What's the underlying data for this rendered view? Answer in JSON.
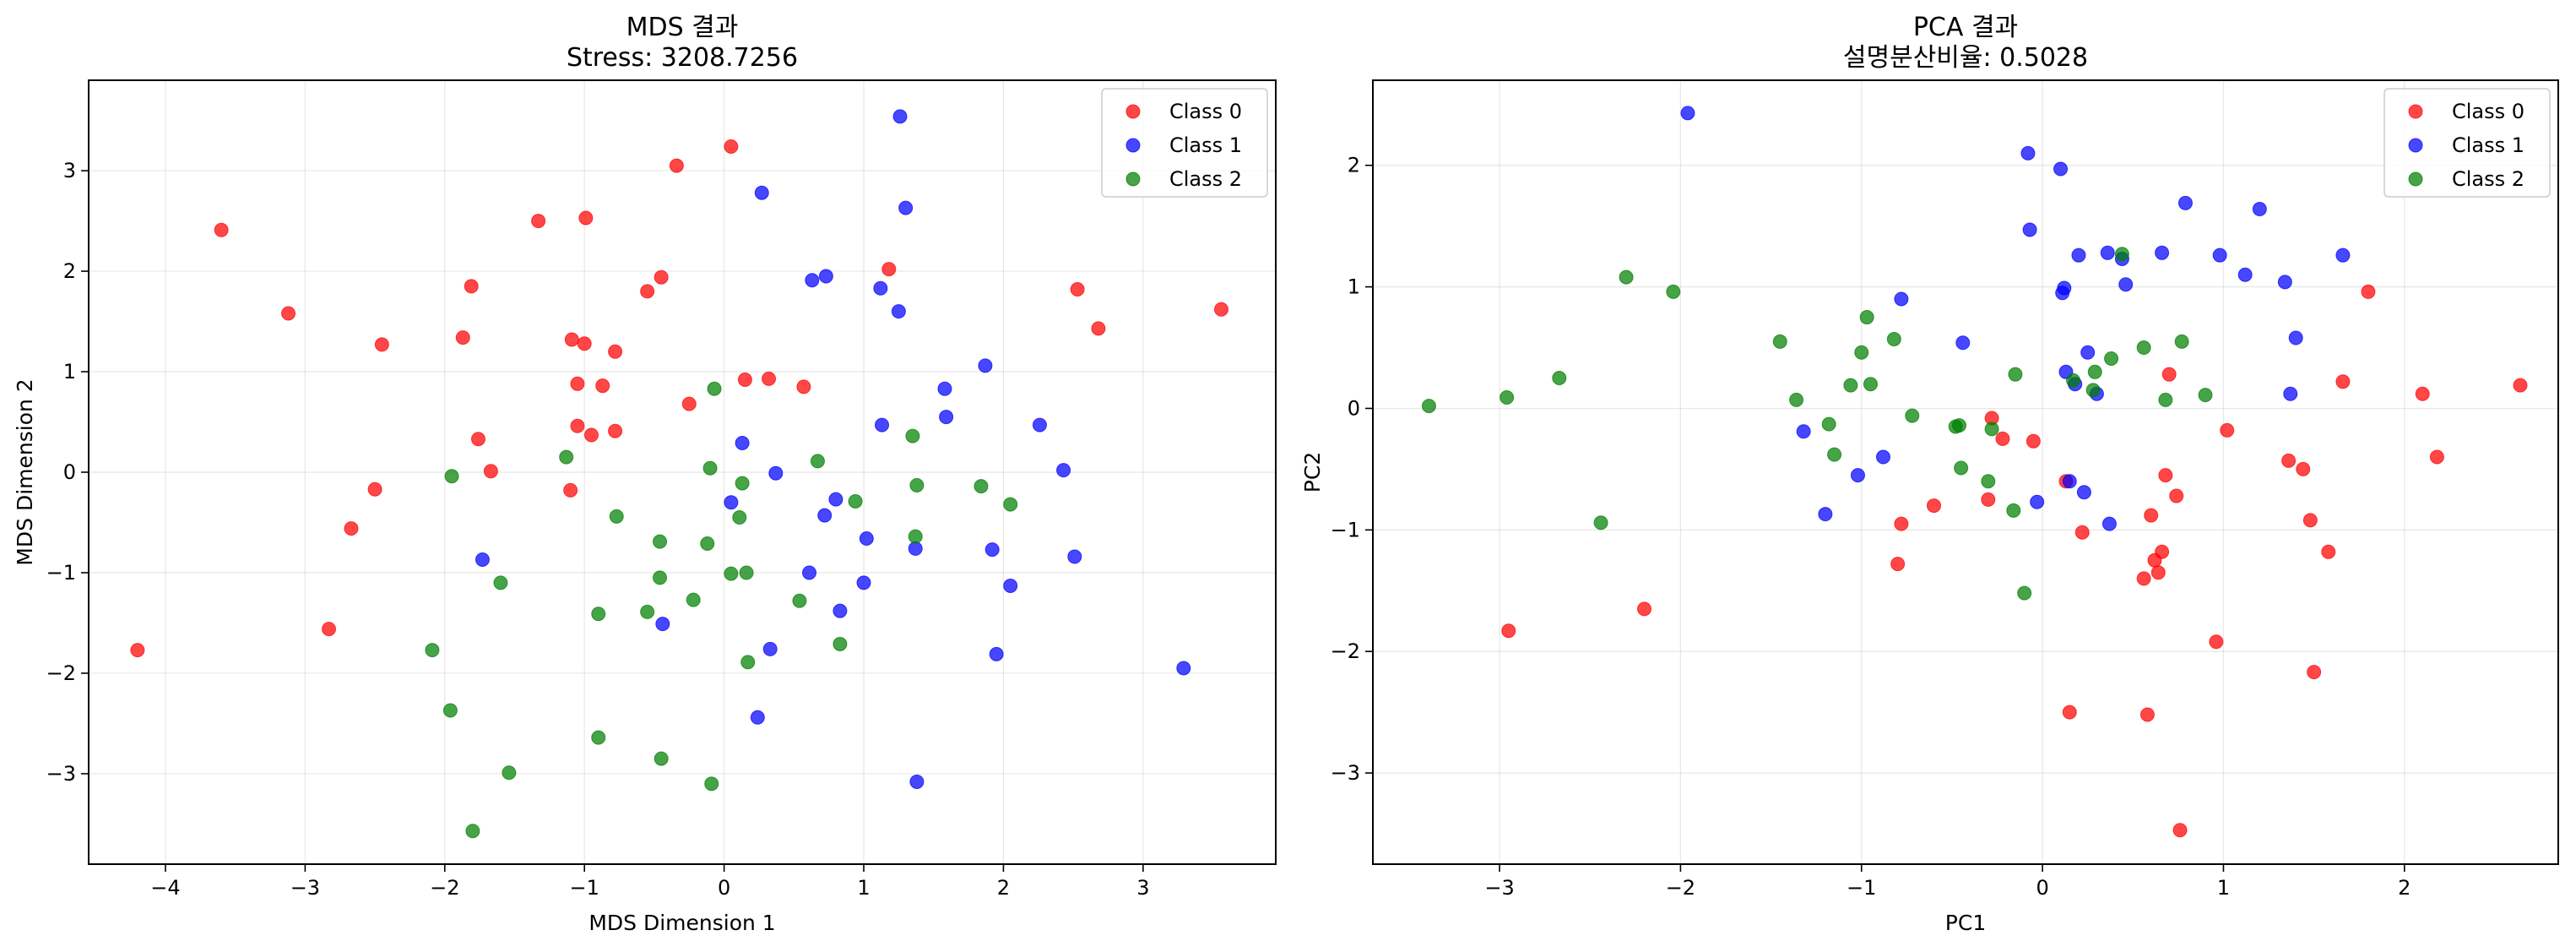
{
  "colors": {
    "Class 0": "#ff0000",
    "Class 1": "#0000ff",
    "Class 2": "#008000"
  },
  "chart_data": [
    {
      "type": "scatter",
      "title": "MDS 결과",
      "subtitle": "Stress: 3208.7256",
      "xlabel": "MDS Dimension 1",
      "ylabel": "MDS Dimension 2",
      "xlim": [
        -4.55,
        3.95
      ],
      "ylim": [
        -3.9,
        3.9
      ],
      "xticks": [
        -4,
        -3,
        -2,
        -1,
        0,
        1,
        2,
        3
      ],
      "yticks": [
        -3,
        -2,
        -1,
        0,
        1,
        2,
        3
      ],
      "grid": true,
      "legend": "top-right",
      "series": [
        {
          "name": "Class 0",
          "points": [
            [
              -4.2,
              -1.77
            ],
            [
              -3.6,
              2.41
            ],
            [
              -3.12,
              1.58
            ],
            [
              -2.83,
              -1.56
            ],
            [
              -2.67,
              -0.56
            ],
            [
              -2.5,
              -0.17
            ],
            [
              -2.45,
              1.27
            ],
            [
              -1.87,
              1.34
            ],
            [
              -1.81,
              1.85
            ],
            [
              -1.76,
              0.33
            ],
            [
              -1.67,
              0.01
            ],
            [
              -1.33,
              2.5
            ],
            [
              -1.1,
              -0.18
            ],
            [
              -1.09,
              1.32
            ],
            [
              -1.05,
              0.88
            ],
            [
              -1.05,
              0.46
            ],
            [
              -1.0,
              1.28
            ],
            [
              -0.99,
              2.53
            ],
            [
              -0.95,
              0.37
            ],
            [
              -0.87,
              0.86
            ],
            [
              -0.78,
              0.41
            ],
            [
              -0.78,
              1.2
            ],
            [
              -0.55,
              1.8
            ],
            [
              -0.45,
              1.94
            ],
            [
              -0.34,
              3.05
            ],
            [
              -0.25,
              0.68
            ],
            [
              0.05,
              3.24
            ],
            [
              0.15,
              0.92
            ],
            [
              0.32,
              0.93
            ],
            [
              0.57,
              0.85
            ],
            [
              1.18,
              2.02
            ],
            [
              2.53,
              1.82
            ],
            [
              2.68,
              1.43
            ],
            [
              3.56,
              1.62
            ]
          ]
        },
        {
          "name": "Class 1",
          "points": [
            [
              -1.73,
              -0.87
            ],
            [
              -0.44,
              -1.51
            ],
            [
              0.05,
              -0.3
            ],
            [
              0.13,
              0.29
            ],
            [
              0.24,
              -2.44
            ],
            [
              0.27,
              2.78
            ],
            [
              0.33,
              -1.76
            ],
            [
              0.37,
              -0.01
            ],
            [
              0.61,
              -1.0
            ],
            [
              0.63,
              1.91
            ],
            [
              0.72,
              -0.43
            ],
            [
              0.73,
              1.95
            ],
            [
              0.8,
              -0.27
            ],
            [
              0.83,
              -1.38
            ],
            [
              1.0,
              -1.1
            ],
            [
              1.02,
              -0.66
            ],
            [
              1.12,
              1.83
            ],
            [
              1.13,
              0.47
            ],
            [
              1.25,
              1.6
            ],
            [
              1.26,
              3.54
            ],
            [
              1.3,
              2.63
            ],
            [
              1.37,
              -0.76
            ],
            [
              1.38,
              -3.08
            ],
            [
              1.58,
              0.83
            ],
            [
              1.59,
              0.55
            ],
            [
              1.87,
              1.06
            ],
            [
              1.92,
              -0.77
            ],
            [
              1.95,
              -1.81
            ],
            [
              2.05,
              -1.13
            ],
            [
              2.26,
              0.47
            ],
            [
              2.43,
              0.02
            ],
            [
              2.51,
              -0.84
            ],
            [
              3.29,
              -1.95
            ]
          ]
        },
        {
          "name": "Class 2",
          "points": [
            [
              -2.09,
              -1.77
            ],
            [
              -1.96,
              -2.37
            ],
            [
              -1.95,
              -0.04
            ],
            [
              -1.8,
              -3.57
            ],
            [
              -1.6,
              -1.1
            ],
            [
              -1.54,
              -2.99
            ],
            [
              -1.13,
              0.15
            ],
            [
              -0.9,
              -1.41
            ],
            [
              -0.9,
              -2.64
            ],
            [
              -0.77,
              -0.44
            ],
            [
              -0.55,
              -1.39
            ],
            [
              -0.46,
              -0.69
            ],
            [
              -0.46,
              -1.05
            ],
            [
              -0.45,
              -2.85
            ],
            [
              -0.22,
              -1.27
            ],
            [
              -0.12,
              -0.71
            ],
            [
              -0.1,
              0.04
            ],
            [
              -0.09,
              -3.1
            ],
            [
              -0.07,
              0.83
            ],
            [
              0.05,
              -1.01
            ],
            [
              0.11,
              -0.45
            ],
            [
              0.13,
              -0.11
            ],
            [
              0.16,
              -1.0
            ],
            [
              0.17,
              -1.89
            ],
            [
              0.54,
              -1.28
            ],
            [
              0.67,
              0.11
            ],
            [
              0.83,
              -1.71
            ],
            [
              0.94,
              -0.29
            ],
            [
              1.35,
              0.36
            ],
            [
              1.37,
              -0.64
            ],
            [
              1.38,
              -0.13
            ],
            [
              1.84,
              -0.14
            ],
            [
              2.05,
              -0.32
            ]
          ]
        }
      ]
    },
    {
      "type": "scatter",
      "title": "PCA 결과",
      "subtitle": "설명분산비율: 0.5028",
      "xlabel": "PC1",
      "ylabel": "PC2",
      "xlim": [
        -3.7,
        2.85
      ],
      "ylim": [
        -3.75,
        2.7
      ],
      "xticks": [
        -3,
        -2,
        -1,
        0,
        1,
        2
      ],
      "yticks": [
        -3,
        -2,
        -1,
        0,
        1,
        2
      ],
      "grid": true,
      "legend": "top-right",
      "series": [
        {
          "name": "Class 0",
          "points": [
            [
              -2.95,
              -1.83
            ],
            [
              -2.2,
              -1.65
            ],
            [
              -0.8,
              -1.28
            ],
            [
              -0.78,
              -0.95
            ],
            [
              -0.6,
              -0.8
            ],
            [
              -0.3,
              -0.75
            ],
            [
              -0.28,
              -0.08
            ],
            [
              -0.22,
              -0.25
            ],
            [
              -0.05,
              -0.27
            ],
            [
              0.13,
              -0.6
            ],
            [
              0.15,
              -2.5
            ],
            [
              0.22,
              -1.02
            ],
            [
              0.56,
              -1.4
            ],
            [
              0.58,
              -2.52
            ],
            [
              0.6,
              -0.88
            ],
            [
              0.62,
              -1.25
            ],
            [
              0.64,
              -1.35
            ],
            [
              0.66,
              -1.18
            ],
            [
              0.68,
              -0.55
            ],
            [
              0.7,
              0.28
            ],
            [
              0.74,
              -0.72
            ],
            [
              0.76,
              -3.47
            ],
            [
              0.96,
              -1.92
            ],
            [
              1.02,
              -0.18
            ],
            [
              1.36,
              -0.43
            ],
            [
              1.44,
              -0.5
            ],
            [
              1.48,
              -0.92
            ],
            [
              1.5,
              -2.17
            ],
            [
              1.58,
              -1.18
            ],
            [
              1.66,
              0.22
            ],
            [
              1.8,
              0.96
            ],
            [
              2.1,
              0.12
            ],
            [
              2.18,
              -0.4
            ],
            [
              2.64,
              0.19
            ]
          ]
        },
        {
          "name": "Class 1",
          "points": [
            [
              -1.96,
              2.43
            ],
            [
              -1.32,
              -0.19
            ],
            [
              -1.2,
              -0.87
            ],
            [
              -1.02,
              -0.55
            ],
            [
              -0.88,
              -0.4
            ],
            [
              -0.78,
              0.9
            ],
            [
              -0.44,
              0.54
            ],
            [
              -0.03,
              -0.77
            ],
            [
              0.1,
              1.97
            ],
            [
              0.11,
              0.95
            ],
            [
              0.12,
              0.99
            ],
            [
              0.13,
              0.3
            ],
            [
              0.15,
              -0.6
            ],
            [
              0.18,
              0.2
            ],
            [
              0.2,
              1.26
            ],
            [
              0.23,
              -0.69
            ],
            [
              0.25,
              0.46
            ],
            [
              0.3,
              0.12
            ],
            [
              0.36,
              1.28
            ],
            [
              0.37,
              -0.95
            ],
            [
              0.44,
              1.23
            ],
            [
              0.46,
              1.02
            ],
            [
              0.66,
              1.28
            ],
            [
              0.79,
              1.69
            ],
            [
              0.98,
              1.26
            ],
            [
              1.12,
              1.1
            ],
            [
              1.2,
              1.64
            ],
            [
              1.34,
              1.04
            ],
            [
              1.37,
              0.12
            ],
            [
              1.4,
              0.58
            ],
            [
              1.66,
              1.26
            ],
            [
              -0.07,
              1.47
            ],
            [
              -0.08,
              2.1
            ]
          ]
        },
        {
          "name": "Class 2",
          "points": [
            [
              -3.39,
              0.02
            ],
            [
              -2.96,
              0.09
            ],
            [
              -2.67,
              0.25
            ],
            [
              -2.44,
              -0.94
            ],
            [
              -2.3,
              1.08
            ],
            [
              -2.04,
              0.96
            ],
            [
              -1.45,
              0.55
            ],
            [
              -1.36,
              0.07
            ],
            [
              -1.18,
              -0.13
            ],
            [
              -1.15,
              -0.38
            ],
            [
              -1.06,
              0.19
            ],
            [
              -1.0,
              0.46
            ],
            [
              -0.97,
              0.75
            ],
            [
              -0.95,
              0.2
            ],
            [
              -0.82,
              0.57
            ],
            [
              -0.72,
              -0.06
            ],
            [
              -0.48,
              -0.15
            ],
            [
              -0.45,
              -0.49
            ],
            [
              -0.3,
              -0.6
            ],
            [
              -0.28,
              -0.17
            ],
            [
              -0.16,
              -0.84
            ],
            [
              -0.15,
              0.28
            ],
            [
              -0.1,
              -1.52
            ],
            [
              0.17,
              0.23
            ],
            [
              0.28,
              0.15
            ],
            [
              0.38,
              0.41
            ],
            [
              0.44,
              1.27
            ],
            [
              0.56,
              0.5
            ],
            [
              0.68,
              0.07
            ],
            [
              0.77,
              0.55
            ],
            [
              0.9,
              0.11
            ],
            [
              -0.46,
              -0.14
            ],
            [
              0.29,
              0.3
            ]
          ]
        }
      ]
    }
  ]
}
